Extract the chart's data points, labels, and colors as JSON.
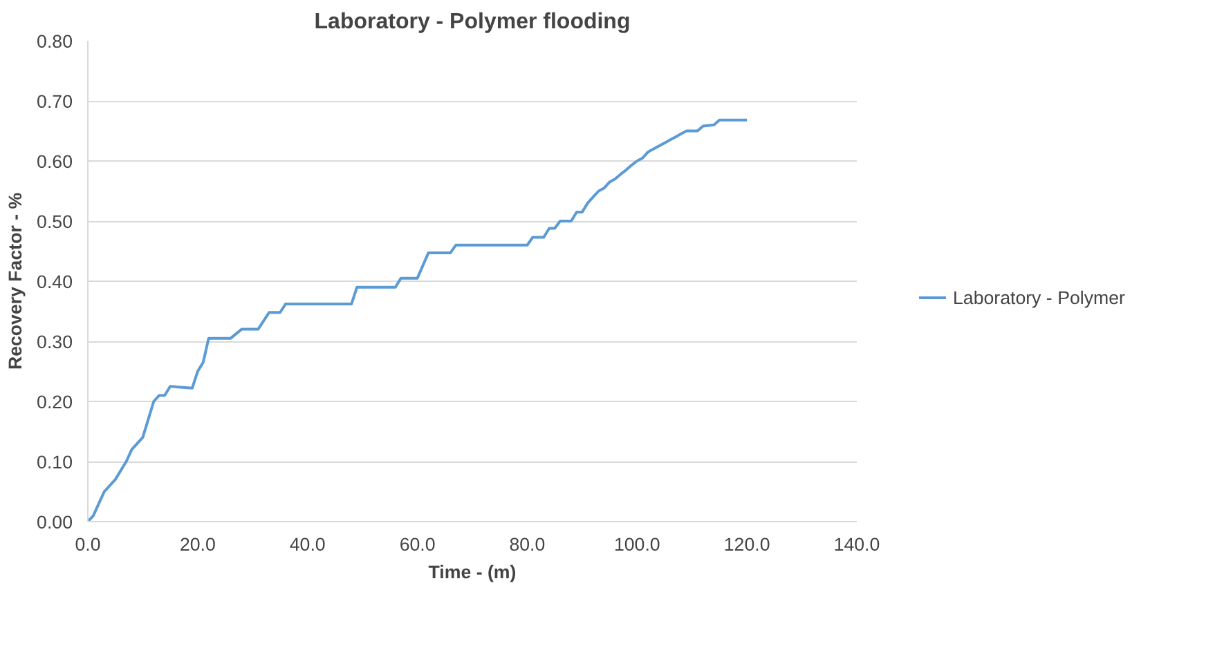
{
  "chart_data": {
    "type": "line",
    "title": "Laboratory - Polymer flooding",
    "xlabel": "Time - (m)",
    "ylabel": "Recovery Factor - %",
    "xlim": [
      0,
      140
    ],
    "ylim": [
      0,
      0.8
    ],
    "xticks": [
      {
        "value": 0,
        "label": "0.0"
      },
      {
        "value": 20,
        "label": "20.0"
      },
      {
        "value": 40,
        "label": "40.0"
      },
      {
        "value": 60,
        "label": "60.0"
      },
      {
        "value": 80,
        "label": "80.0"
      },
      {
        "value": 100,
        "label": "100.0"
      },
      {
        "value": 120,
        "label": "120.0"
      },
      {
        "value": 140,
        "label": "140.0"
      }
    ],
    "yticks": [
      {
        "value": 0,
        "label": "0.00"
      },
      {
        "value": 0.1,
        "label": "0.10"
      },
      {
        "value": 0.2,
        "label": "0.20"
      },
      {
        "value": 0.3,
        "label": "0.30"
      },
      {
        "value": 0.4,
        "label": "0.40"
      },
      {
        "value": 0.5,
        "label": "0.50"
      },
      {
        "value": 0.6,
        "label": "0.60"
      },
      {
        "value": 0.7,
        "label": "0.70"
      },
      {
        "value": 0.8,
        "label": "0.80"
      }
    ],
    "grid": "y",
    "legend": "right",
    "series": [
      {
        "name": "Laboratory - Polymer",
        "color": "#5b9bd5",
        "x": [
          0,
          1,
          2,
          3,
          5,
          7,
          8,
          10,
          11,
          12,
          13,
          14,
          15,
          19,
          20,
          21,
          22,
          26,
          28,
          31,
          33,
          35,
          36,
          48,
          49,
          56,
          57,
          60,
          62,
          66,
          67,
          80,
          81,
          83,
          84,
          85,
          86,
          88,
          89,
          90,
          91,
          92,
          93,
          94,
          95,
          96,
          97,
          98,
          99,
          100,
          101,
          102,
          103,
          104,
          105,
          106,
          107,
          108,
          109,
          111,
          112,
          114,
          115,
          120
        ],
        "values": [
          0,
          0.01,
          0.03,
          0.05,
          0.07,
          0.1,
          0.12,
          0.14,
          0.17,
          0.2,
          0.21,
          0.21,
          0.225,
          0.222,
          0.25,
          0.265,
          0.305,
          0.305,
          0.32,
          0.32,
          0.348,
          0.348,
          0.362,
          0.362,
          0.39,
          0.39,
          0.405,
          0.405,
          0.447,
          0.447,
          0.46,
          0.46,
          0.473,
          0.473,
          0.488,
          0.488,
          0.5,
          0.5,
          0.515,
          0.515,
          0.53,
          0.54,
          0.55,
          0.555,
          0.565,
          0.57,
          0.578,
          0.585,
          0.593,
          0.6,
          0.605,
          0.615,
          0.62,
          0.625,
          0.63,
          0.635,
          0.64,
          0.645,
          0.65,
          0.65,
          0.658,
          0.66,
          0.668,
          0.668
        ]
      }
    ]
  }
}
